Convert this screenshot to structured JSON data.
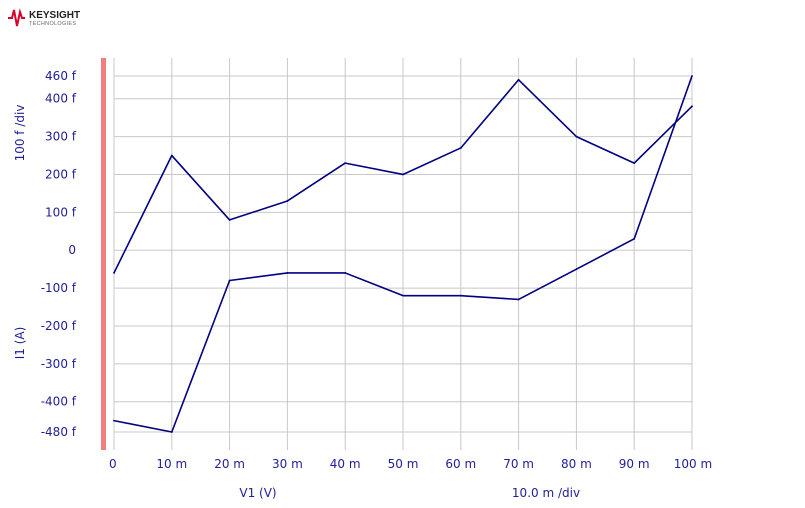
{
  "brand": {
    "name": "KEYSIGHT",
    "sub": "TECHNOLOGIES",
    "logo_color": "#d6002a"
  },
  "colors": {
    "series": "#000080",
    "grid": "#c8c8c8",
    "text": "#1f1f99",
    "marker_bar": "#f08080"
  },
  "chart_data": {
    "type": "line",
    "xlabel": "V1 (V)",
    "ylabel": "I1 (A)",
    "x_div_label": "10.0 m /div",
    "y_div_label": "100 f /div",
    "xlim": [
      0,
      0.1
    ],
    "ylim": [
      -4.8e-13,
      4.6e-13
    ],
    "grid": true,
    "x_ticks": [
      {
        "value": 0,
        "label": "0"
      },
      {
        "value": 0.01,
        "label": "10 m"
      },
      {
        "value": 0.02,
        "label": "20 m"
      },
      {
        "value": 0.03,
        "label": "30 m"
      },
      {
        "value": 0.04,
        "label": "40 m"
      },
      {
        "value": 0.05,
        "label": "50 m"
      },
      {
        "value": 0.06,
        "label": "60 m"
      },
      {
        "value": 0.07,
        "label": "70 m"
      },
      {
        "value": 0.08,
        "label": "80 m"
      },
      {
        "value": 0.09,
        "label": "90 m"
      },
      {
        "value": 0.1,
        "label": "100 m"
      }
    ],
    "y_ticks": [
      {
        "value": 4.6e-13,
        "label": "460 f"
      },
      {
        "value": 4e-13,
        "label": "400 f"
      },
      {
        "value": 3e-13,
        "label": "300 f"
      },
      {
        "value": 2e-13,
        "label": "200 f"
      },
      {
        "value": 1e-13,
        "label": "100 f"
      },
      {
        "value": 0,
        "label": "0"
      },
      {
        "value": -1e-13,
        "label": "-100 f"
      },
      {
        "value": -2e-13,
        "label": "-200 f"
      },
      {
        "value": -3e-13,
        "label": "-300 f"
      },
      {
        "value": -4e-13,
        "label": "-400 f"
      },
      {
        "value": -4.8e-13,
        "label": "-480 f"
      }
    ],
    "x": [
      0,
      0.01,
      0.02,
      0.03,
      0.04,
      0.05,
      0.06,
      0.07,
      0.08,
      0.09,
      0.1
    ],
    "series": [
      {
        "values": [
          -6e-14,
          2.5e-13,
          8e-14,
          1.3e-13,
          2.3e-13,
          2e-13,
          2.7e-13,
          4.5e-13,
          3e-13,
          2.3e-13,
          3.8e-13
        ]
      },
      {
        "values": [
          -4.5e-13,
          -4.8e-13,
          -8e-14,
          -6e-14,
          -6e-14,
          -1.2e-13,
          -1.2e-13,
          -1.3e-13,
          -5e-14,
          3e-14,
          4.6e-13
        ]
      }
    ]
  }
}
